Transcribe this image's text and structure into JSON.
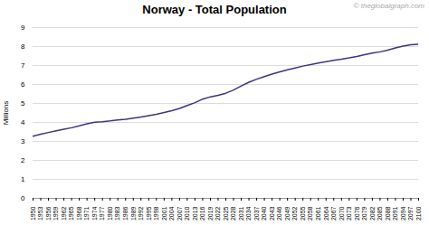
{
  "chart_data": {
    "type": "line",
    "title": "Norway - Total Population",
    "ylabel": "Millions",
    "annotations": [
      "© theglobalgraph.com"
    ],
    "x": [
      1950,
      1953,
      1956,
      1959,
      1962,
      1965,
      1968,
      1971,
      1974,
      1977,
      1980,
      1983,
      1986,
      1989,
      1992,
      1995,
      1998,
      2001,
      2004,
      2007,
      2010,
      2013,
      2016,
      2019,
      2022,
      2025,
      2028,
      2031,
      2034,
      2037,
      2040,
      2043,
      2046,
      2049,
      2052,
      2055,
      2058,
      2061,
      2064,
      2067,
      2070,
      2073,
      2076,
      2079,
      2082,
      2085,
      2088,
      2091,
      2094,
      2097,
      2100
    ],
    "values": [
      3.27,
      3.38,
      3.47,
      3.56,
      3.64,
      3.72,
      3.82,
      3.93,
      4.01,
      4.04,
      4.08,
      4.13,
      4.17,
      4.23,
      4.29,
      4.36,
      4.43,
      4.52,
      4.62,
      4.74,
      4.89,
      5.04,
      5.23,
      5.35,
      5.43,
      5.54,
      5.71,
      5.92,
      6.12,
      6.28,
      6.42,
      6.55,
      6.67,
      6.77,
      6.87,
      6.97,
      7.05,
      7.13,
      7.2,
      7.27,
      7.33,
      7.4,
      7.48,
      7.57,
      7.65,
      7.72,
      7.81,
      7.93,
      8.02,
      8.09,
      8.12
    ],
    "color": "#3d3580",
    "xlim": [
      1950,
      2100
    ],
    "xticks": [
      1950,
      1953,
      1956,
      1959,
      1962,
      1965,
      1968,
      1971,
      1974,
      1977,
      1980,
      1983,
      1986,
      1989,
      1992,
      1995,
      1998,
      2001,
      2004,
      2007,
      2010,
      2013,
      2016,
      2019,
      2022,
      2025,
      2028,
      2031,
      2034,
      2037,
      2040,
      2043,
      2046,
      2049,
      2052,
      2055,
      2058,
      2061,
      2064,
      2067,
      2070,
      2073,
      2076,
      2079,
      2082,
      2085,
      2088,
      2091,
      2094,
      2097,
      2100
    ],
    "ylim": [
      0,
      9
    ],
    "yticks": [
      0,
      1,
      2,
      3,
      4,
      5,
      6,
      7,
      8,
      9
    ],
    "grid": "y"
  }
}
